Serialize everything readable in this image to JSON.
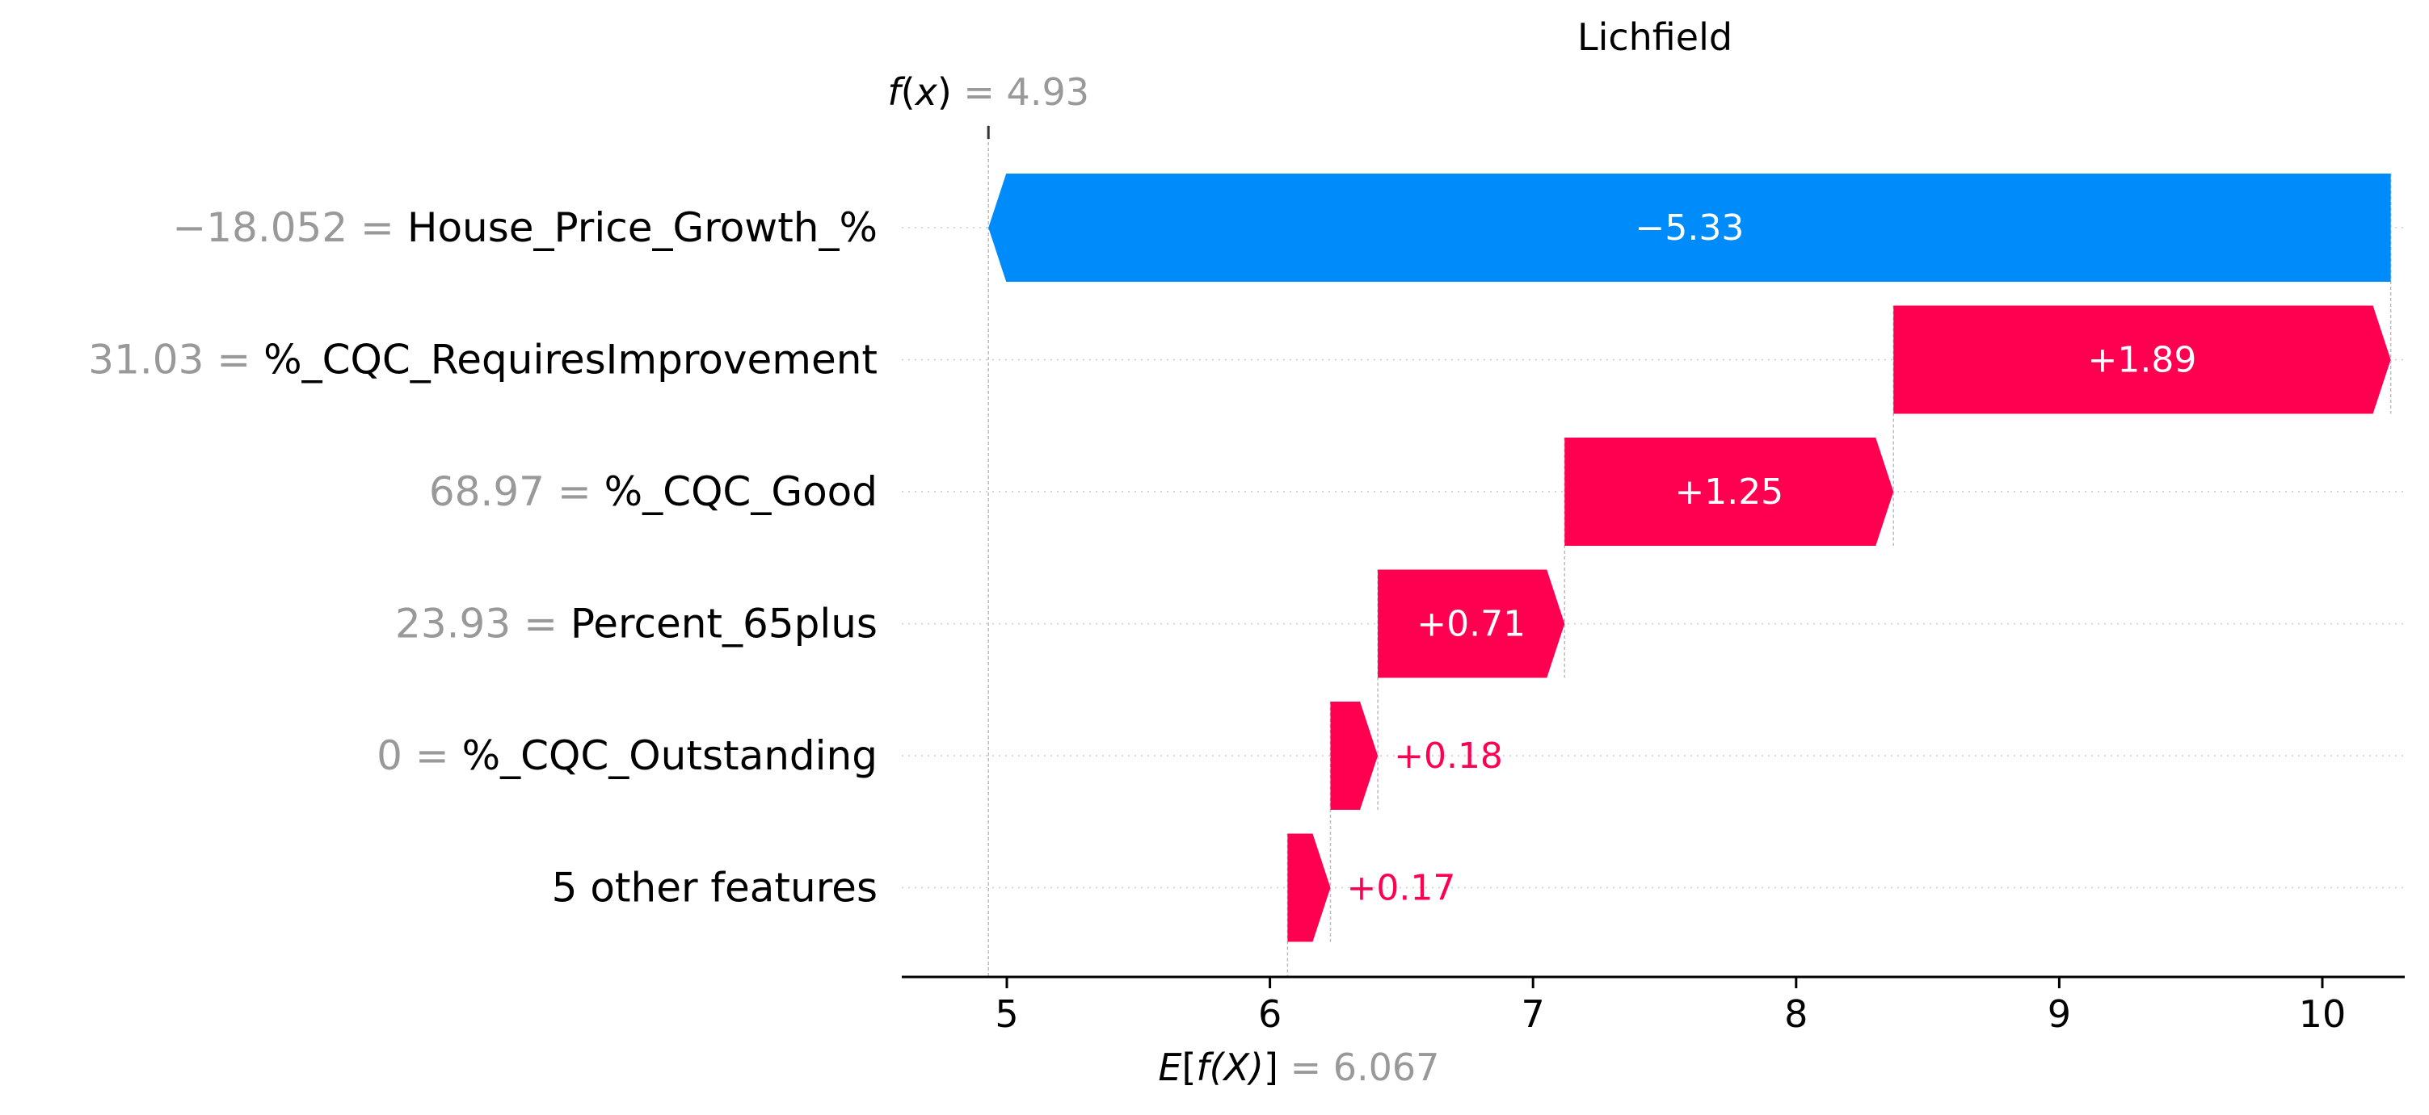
{
  "chart_data": {
    "type": "bar",
    "subtype": "waterfall",
    "title": "Lichfield",
    "fx": {
      "label_prefix": "f",
      "label_var": "x",
      "equals": "= 4.93",
      "value": 4.93
    },
    "base": {
      "label_prefix": "E",
      "label_var": "f(X)",
      "equals": "= 6.067",
      "value": 6.067
    },
    "xlim": [
      4.6,
      10.3
    ],
    "xticks": [
      5,
      6,
      7,
      8,
      9,
      10
    ],
    "grid": "horizontal dotted",
    "features": [
      {
        "value_text": "−18.052 =",
        "name": "House_Price_Growth_%",
        "start": 10.26,
        "end": 4.93,
        "contribution": -5.33,
        "label": "−5.33",
        "label_inside": true
      },
      {
        "value_text": "31.03 =",
        "name": "%_CQC_RequiresImprovement",
        "start": 8.37,
        "end": 10.26,
        "contribution": 1.89,
        "label": "+1.89",
        "label_inside": true
      },
      {
        "value_text": "68.97 =",
        "name": "%_CQC_Good",
        "start": 7.12,
        "end": 8.37,
        "contribution": 1.25,
        "label": "+1.25",
        "label_inside": true
      },
      {
        "value_text": "23.93 =",
        "name": "Percent_65plus",
        "start": 6.41,
        "end": 7.12,
        "contribution": 0.71,
        "label": "+0.71",
        "label_inside": true
      },
      {
        "value_text": "0 =",
        "name": "%_CQC_Outstanding",
        "start": 6.23,
        "end": 6.41,
        "contribution": 0.18,
        "label": "+0.18",
        "label_inside": false
      },
      {
        "value_text": "",
        "name": "5 other features",
        "start": 6.067,
        "end": 6.23,
        "contribution": 0.17,
        "label": "+0.17",
        "label_inside": false
      }
    ],
    "colors": {
      "positive": "#ff0051",
      "negative": "#008bfb",
      "feature_value": "#999999",
      "text": "#000000",
      "guide": "#bbbbbb",
      "grid": "#cccccc"
    }
  }
}
